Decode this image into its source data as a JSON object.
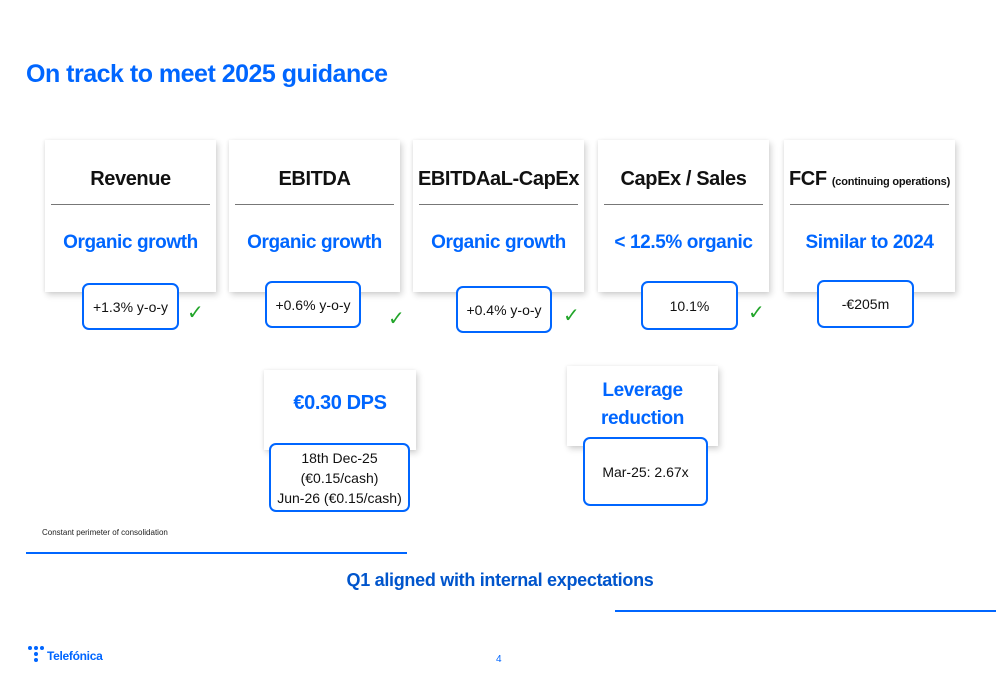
{
  "title": "On track to meet 2025 guidance",
  "cards": [
    {
      "heading": "Revenue",
      "heading_note": "",
      "target": "Organic growth",
      "result": "+1.3% y-o-y",
      "check": "✓"
    },
    {
      "heading": "EBITDA",
      "heading_note": "",
      "target": "Organic growth",
      "result": "+0.6% y-o-y",
      "check": "✓"
    },
    {
      "heading": "EBITDAaL-CapEx",
      "heading_note": "",
      "target": "Organic growth",
      "result": "+0.4% y-o-y",
      "check": "✓"
    },
    {
      "heading": "CapEx / Sales",
      "heading_note": "",
      "target": "< 12.5% organic",
      "result": "10.1%",
      "check": "✓"
    },
    {
      "heading": "FCF",
      "heading_note": "(continuing operations)",
      "target": "Similar to 2024",
      "result": "-€205m",
      "check": ""
    }
  ],
  "dividend": {
    "heading": "€0.30 DPS",
    "lines": [
      "18th Dec-25",
      "(€0.15/cash)",
      "Jun-26 (€0.15/cash)"
    ]
  },
  "leverage": {
    "heading_line1": "Leverage",
    "heading_line2": "reduction",
    "value": "Mar-25: 2.67x"
  },
  "footnote": "Constant perimeter of consolidation",
  "bottom_message": "Q1 aligned with internal expectations",
  "page_number": "4",
  "brand": "Telefónica",
  "colors": {
    "accent": "#0066ff",
    "check": "#22a52a"
  }
}
